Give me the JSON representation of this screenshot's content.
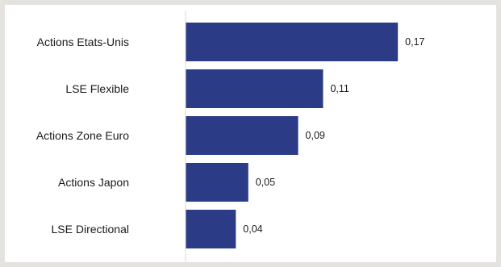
{
  "chart_data": {
    "type": "bar",
    "orientation": "horizontal",
    "categories": [
      "Actions Etats-Unis",
      "LSE Flexible",
      "Actions Zone Euro",
      "Actions Japon",
      "LSE Directional"
    ],
    "values": [
      0.17,
      0.11,
      0.09,
      0.05,
      0.04
    ],
    "value_labels": [
      "0,17",
      "0,11",
      "0,09",
      "0,05",
      "0,04"
    ],
    "xlim": [
      0,
      0.2
    ],
    "grid": false,
    "bar_color": "#2b3b85",
    "axis_color": "#d9d9d9"
  }
}
